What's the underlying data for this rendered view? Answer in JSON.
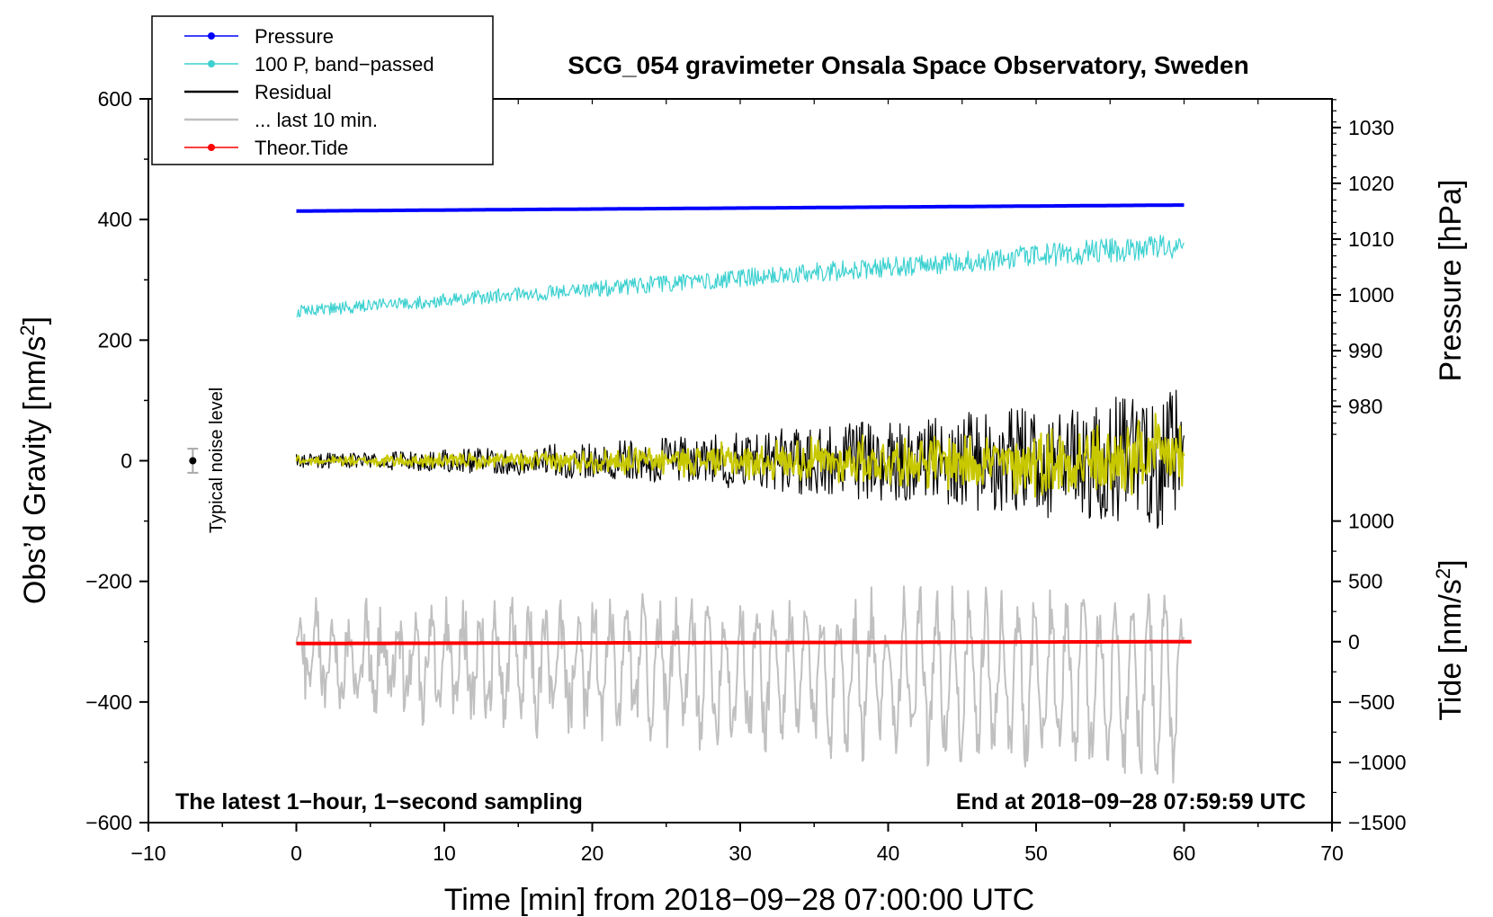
{
  "chart_data": {
    "type": "line",
    "title": "SCG_054 gravimeter Onsala Space Observatory, Sweden",
    "xlabel": "Time [min] from 2018−09−28 07:00:00 UTC",
    "ylabel_left": "Obs’d Gravity [nm/s",
    "ylabel_left_sup": "2",
    "ylabel_left_end": "]",
    "ylabel_right_pressure": "Pressure [hPa]",
    "ylabel_right_tide": "Tide [nm/s",
    "ylabel_right_tide_sup": "2",
    "ylabel_right_tide_end": "]",
    "xlim": [
      -10,
      70
    ],
    "ylim": [
      -600,
      600
    ],
    "x_ticks": [
      -10,
      0,
      10,
      20,
      30,
      40,
      50,
      60,
      70
    ],
    "x_tick_labels": [
      "−10",
      "0",
      "10",
      "20",
      "30",
      "40",
      "50",
      "60",
      "70"
    ],
    "y_ticks": [
      -600,
      -400,
      -200,
      0,
      200,
      400,
      600
    ],
    "y_tick_labels": [
      "−600",
      "−400",
      "−200",
      "0",
      "200",
      "400",
      "600"
    ],
    "pressure_ticks": [
      980,
      990,
      1000,
      1010,
      1020,
      1030
    ],
    "pressure_tick_labels": [
      "980",
      "990",
      "1000",
      "1010",
      "1020",
      "1030"
    ],
    "pressure_map": {
      "hpa_ref": 1000,
      "gravity_at_ref": 275,
      "gravity_per_hpa": 9.25
    },
    "tide_ticks": [
      -1500,
      -1000,
      -500,
      0,
      500,
      1000
    ],
    "tide_tick_labels": [
      "−1500",
      "−1000",
      "−500",
      "0",
      "500",
      "1000"
    ],
    "tide_map": {
      "gravity_at_zero": -300,
      "gravity_per_unit": 0.2
    },
    "legend": [
      {
        "label": "Pressure",
        "color": "#0000ff",
        "marker": true
      },
      {
        "label": "100 P, band−passed",
        "color": "#3cd0d0",
        "marker": true
      },
      {
        "label": "Residual",
        "color": "#000000",
        "marker": false
      },
      {
        "label": "... last 10 min.",
        "color": "#c0c0c0",
        "marker": false
      },
      {
        "label": "Theor.Tide",
        "color": "#ff0000",
        "marker": true
      }
    ],
    "annotation_left": "The latest 1−hour, 1−second sampling",
    "annotation_right": "End at 2018−09−28 07:59:59 UTC",
    "noise_label": "Typical noise level",
    "noise_bar": {
      "x": -7,
      "center": 0,
      "half_range": 20
    },
    "series": [
      {
        "name": "Pressure",
        "color": "#0000ff",
        "x_start": 0,
        "x_end": 60,
        "y_start": 414,
        "y_end": 424,
        "noise_amp": 0,
        "width": 4
      },
      {
        "name": "100 P, band−passed",
        "color": "#3cd0d0",
        "x_start": 0,
        "x_end": 60,
        "y_start": 248,
        "y_end": 358,
        "noise_amp": 14,
        "width": 1.2
      },
      {
        "name": "Residual",
        "color": "#000000",
        "x_start": 0,
        "x_end": 60,
        "y_start": 0,
        "y_end": 0,
        "noise_amp": 85,
        "width": 1.2
      },
      {
        "name": "Residual smoothed",
        "color": "#c8c800",
        "x_start": 0,
        "x_end": 60,
        "y_start": 0,
        "y_end": 0,
        "noise_amp": 45,
        "width": 2
      },
      {
        "name": "... last 10 min.",
        "color": "#c0c0c0",
        "x_start": 0,
        "x_end": 60,
        "y_start": -330,
        "y_end": -370,
        "noise_amp": 110,
        "width": 2
      },
      {
        "name": "Theor.Tide",
        "color": "#ff0000",
        "x_start": 0,
        "x_end": 60.5,
        "y_start": -303,
        "y_end": -300,
        "noise_amp": 0,
        "width": 4
      }
    ]
  }
}
